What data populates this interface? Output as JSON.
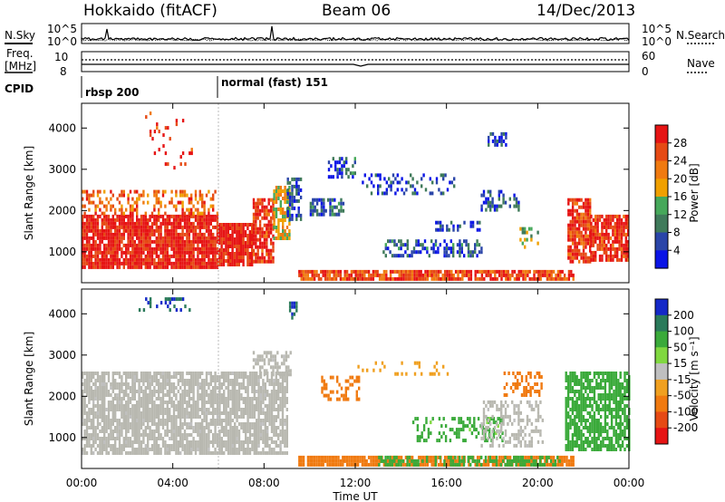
{
  "header": {
    "title": "Hokkaido (fitACF)",
    "beam": "Beam 06",
    "date": "14/Dec/2013"
  },
  "summary": {
    "nsky_label": "N.Sky",
    "nsearch_label": "N.Search",
    "noise_tick_top": "10^5",
    "noise_tick_bottom": "10^0",
    "freq_label_1": "Freq.",
    "freq_label_2": "[MHz]",
    "freq_ticks": [
      "10",
      "8"
    ],
    "nave_ticks": [
      "60",
      "0"
    ],
    "nave_label": "Nave",
    "cpid_label": "CPID",
    "modes": [
      {
        "label": "rbsp 200",
        "start_hour": 0
      },
      {
        "label": "normal (fast) 151",
        "start_hour": 6
      }
    ]
  },
  "colors": {
    "power_scale": [
      "#0a14e6",
      "#2a45a8",
      "#3f7a5a",
      "#46a85a",
      "#f0a000",
      "#f07a10",
      "#e64a14",
      "#e61414"
    ],
    "velocity_scale": [
      "#1428c8",
      "#2a7a5a",
      "#3aaa3a",
      "#80d840",
      "#bfbfbf",
      "#f0a020",
      "#f07a10",
      "#e64a14",
      "#e61414"
    ],
    "ground_scatter": "#b8b8b0"
  },
  "chart_data": [
    {
      "type": "heatmap",
      "name": "power-panel",
      "ylabel": "Slant Range [km]",
      "yticks": [
        "1000",
        "2000",
        "3000",
        "4000"
      ],
      "ylim": [
        250,
        4600
      ],
      "xlim_hours": [
        0,
        24
      ],
      "colorbar": {
        "label": "Power [dB]",
        "ticks": [
          "4",
          "8",
          "12",
          "16",
          "20",
          "24",
          "28"
        ],
        "range": [
          0,
          32
        ]
      },
      "regions": [
        {
          "t0": 0.0,
          "t1": 6.0,
          "r0": 650,
          "r1": 1900,
          "v": 30,
          "d": 0.9
        },
        {
          "t0": 0.0,
          "t1": 6.0,
          "r0": 1900,
          "r1": 2500,
          "v": 24,
          "d": 0.45
        },
        {
          "t0": 6.0,
          "t1": 7.5,
          "r0": 650,
          "r1": 1700,
          "v": 30,
          "d": 0.9
        },
        {
          "t0": 7.5,
          "t1": 8.4,
          "r0": 800,
          "r1": 2300,
          "v": 29,
          "d": 0.8
        },
        {
          "t0": 8.4,
          "t1": 9.1,
          "r0": 1300,
          "r1": 2600,
          "v": 18,
          "d": 0.75
        },
        {
          "t0": 9.0,
          "t1": 9.6,
          "r0": 1800,
          "r1": 2800,
          "v": 6,
          "d": 0.5
        },
        {
          "t0": 9.5,
          "t1": 21.6,
          "r0": 300,
          "r1": 560,
          "v": 26,
          "d": 0.85
        },
        {
          "t0": 10.0,
          "t1": 11.5,
          "r0": 1900,
          "r1": 2300,
          "v": 8,
          "d": 0.55
        },
        {
          "t0": 10.8,
          "t1": 12.0,
          "r0": 2800,
          "r1": 3300,
          "v": 7,
          "d": 0.5
        },
        {
          "t0": 12.0,
          "t1": 16.3,
          "r0": 2400,
          "r1": 2900,
          "v": 5,
          "d": 0.25
        },
        {
          "t0": 13.2,
          "t1": 17.5,
          "r0": 900,
          "r1": 1300,
          "v": 7,
          "d": 0.45
        },
        {
          "t0": 15.5,
          "t1": 17.5,
          "r0": 1500,
          "r1": 1750,
          "v": 6,
          "d": 0.45
        },
        {
          "t0": 17.5,
          "t1": 19.2,
          "r0": 2000,
          "r1": 2500,
          "v": 6,
          "d": 0.5
        },
        {
          "t0": 17.8,
          "t1": 18.6,
          "r0": 3600,
          "r1": 3900,
          "v": 5,
          "d": 0.5
        },
        {
          "t0": 19.2,
          "t1": 20.0,
          "r0": 1100,
          "r1": 1600,
          "v": 14,
          "d": 0.5
        },
        {
          "t0": 21.3,
          "t1": 22.3,
          "r0": 800,
          "r1": 2300,
          "v": 28,
          "d": 0.85
        },
        {
          "t0": 22.3,
          "t1": 24.0,
          "r0": 800,
          "r1": 1900,
          "v": 29,
          "d": 0.85
        },
        {
          "t0": 2.5,
          "t1": 4.8,
          "r0": 3000,
          "r1": 4400,
          "v": 28,
          "d": 0.06
        }
      ]
    },
    {
      "type": "heatmap",
      "name": "velocity-panel",
      "ylabel": "Slant Range [km]",
      "yticks": [
        "1000",
        "2000",
        "3000",
        "4000"
      ],
      "ylim": [
        250,
        4600
      ],
      "xlim_hours": [
        0,
        24
      ],
      "xticks": [
        "00:00",
        "04:00",
        "08:00",
        "12:00",
        "16:00",
        "20:00",
        "00:00"
      ],
      "xlabel": "Time UT",
      "colorbar": {
        "label": "Velocity [m s⁻¹]",
        "ticks": [
          "200",
          "100",
          "50",
          "15",
          "-15",
          "-50",
          "-100",
          "-200"
        ],
        "range": [
          -250,
          250
        ]
      },
      "regions": [
        {
          "t0": 0.0,
          "t1": 9.0,
          "r0": 650,
          "r1": 2600,
          "v": 0,
          "d": 0.8,
          "gs": true
        },
        {
          "t0": 7.5,
          "t1": 9.2,
          "r0": 2500,
          "r1": 3100,
          "v": 0,
          "d": 0.5,
          "gs": true
        },
        {
          "t0": 9.5,
          "t1": 21.6,
          "r0": 300,
          "r1": 560,
          "v": -60,
          "d": 0.85
        },
        {
          "t0": 13.0,
          "t1": 21.0,
          "r0": 350,
          "r1": 560,
          "v": 60,
          "d": 0.5
        },
        {
          "t0": 14.5,
          "t1": 18.5,
          "r0": 900,
          "r1": 1500,
          "v": 55,
          "d": 0.35
        },
        {
          "t0": 10.5,
          "t1": 12.2,
          "r0": 1900,
          "r1": 2500,
          "v": -60,
          "d": 0.4
        },
        {
          "t0": 12.0,
          "t1": 16.3,
          "r0": 2500,
          "r1": 2850,
          "v": -30,
          "d": 0.2
        },
        {
          "t0": 18.5,
          "t1": 20.2,
          "r0": 2000,
          "r1": 2600,
          "v": -60,
          "d": 0.45
        },
        {
          "t0": 17.5,
          "t1": 20.2,
          "r0": 800,
          "r1": 1900,
          "v": 0,
          "d": 0.4,
          "gs": true
        },
        {
          "t0": 21.2,
          "t1": 24.0,
          "r0": 700,
          "r1": 2600,
          "v": 60,
          "d": 0.75
        },
        {
          "t0": 2.5,
          "t1": 4.8,
          "r0": 4100,
          "r1": 4400,
          "v": 200,
          "d": 0.25
        },
        {
          "t0": 9.0,
          "t1": 9.4,
          "r0": 3900,
          "r1": 4300,
          "v": 200,
          "d": 0.5
        }
      ]
    }
  ]
}
